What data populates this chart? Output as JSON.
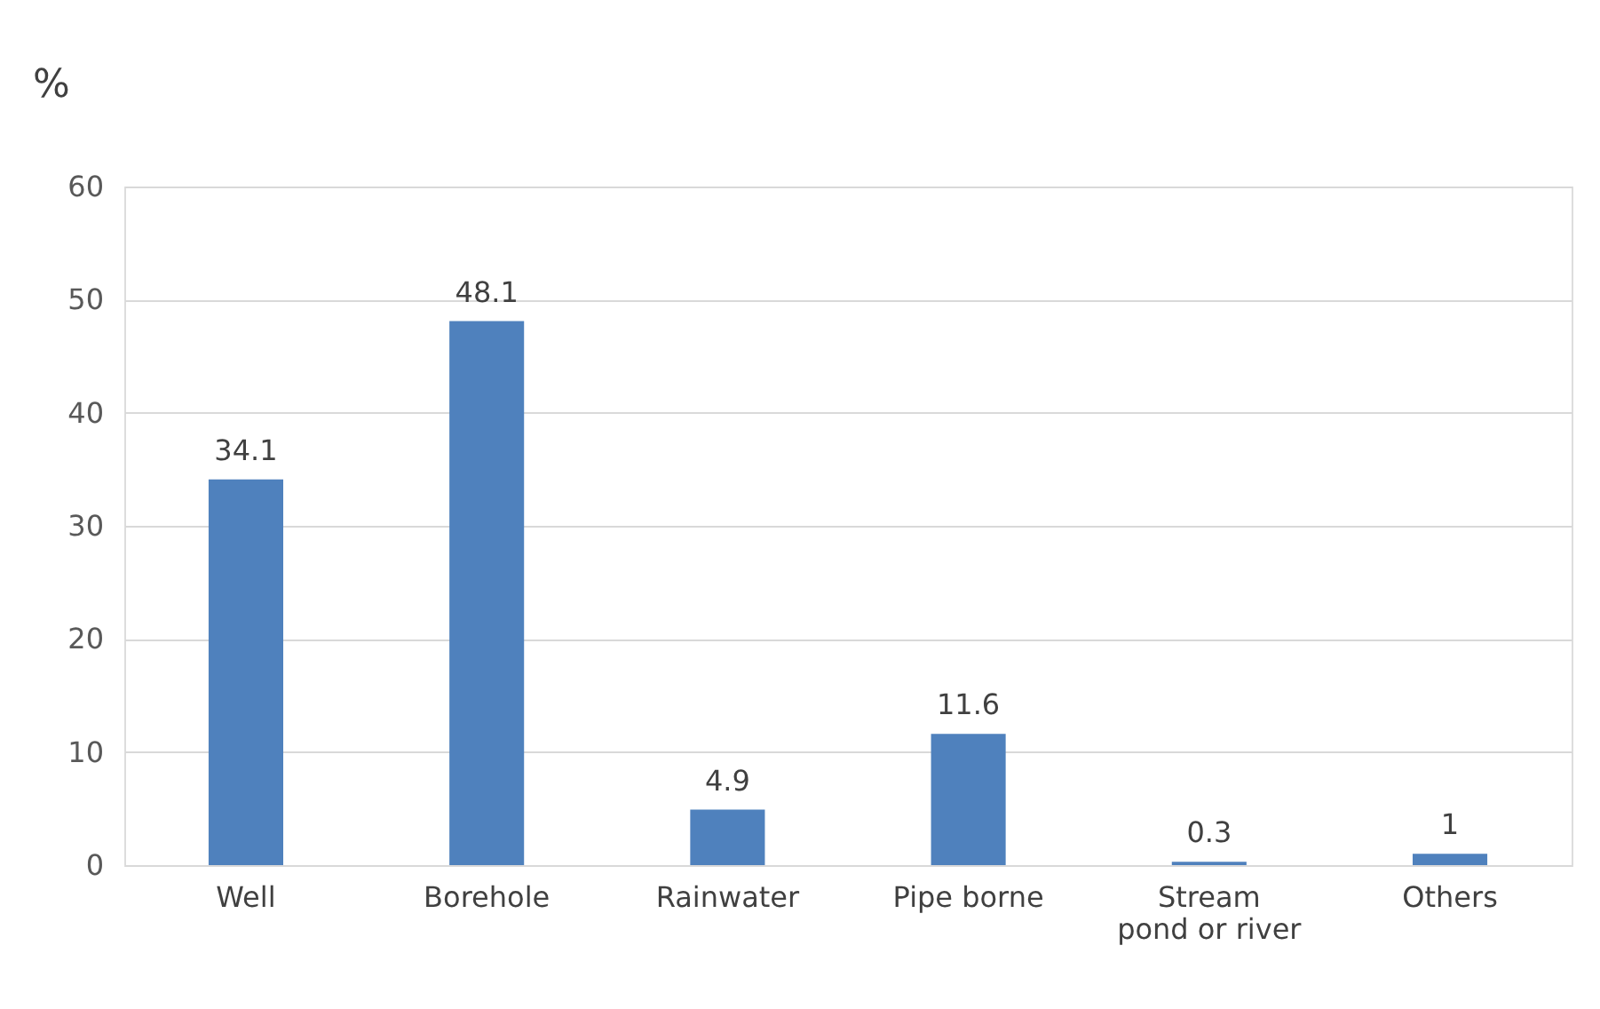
{
  "chart_data": {
    "type": "bar",
    "ylabel": "%",
    "categories": [
      "Well",
      "Borehole",
      "Rainwater",
      "Pipe borne",
      "Stream\npond or river",
      "Others"
    ],
    "values": [
      34.1,
      48.1,
      4.9,
      11.6,
      0.3,
      1
    ],
    "color": "#4f81bd",
    "ylim": [
      0,
      60
    ],
    "yticks": [
      0,
      10,
      20,
      30,
      40,
      50,
      60
    ],
    "grid": "y",
    "data_labels": true
  }
}
